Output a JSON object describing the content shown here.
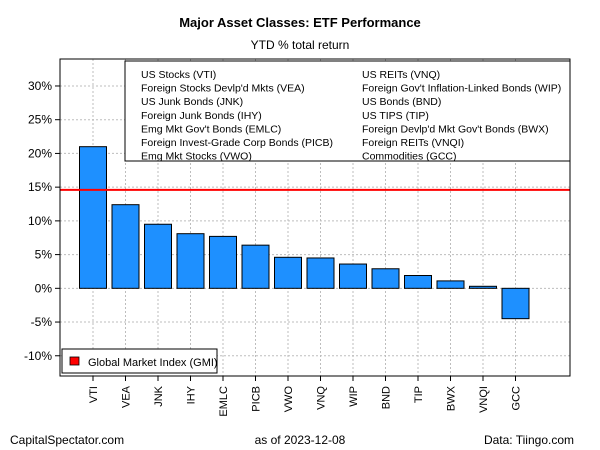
{
  "chart_data": {
    "type": "bar",
    "title": "Major Asset Classes: ETF Performance",
    "subtitle": "YTD % total return",
    "categories": [
      "VTI",
      "VEA",
      "JNK",
      "IHY",
      "EMLC",
      "PICB",
      "VWO",
      "VNQ",
      "WIP",
      "BND",
      "TIP",
      "BWX",
      "VNQI",
      "GCC"
    ],
    "values": [
      21.0,
      12.4,
      9.5,
      8.1,
      7.7,
      6.4,
      4.6,
      4.5,
      3.6,
      2.9,
      1.9,
      1.1,
      0.3,
      -4.5
    ],
    "ylim": [
      -13,
      34
    ],
    "yticks": [
      -10,
      -5,
      0,
      5,
      10,
      15,
      20,
      25,
      30
    ],
    "ytick_labels": [
      "-10%",
      "-5%",
      "0%",
      "5%",
      "10%",
      "15%",
      "20%",
      "25%",
      "30%"
    ],
    "bar_color": "#1e90ff",
    "reference_line": {
      "value": 14.6,
      "color": "#ff0000",
      "label": "Global Market Index (GMI)"
    },
    "grid": true,
    "legend_entries_col1": [
      "US Stocks (VTI)",
      "Foreign Stocks Devlp'd Mkts (VEA)",
      "US Junk Bonds (JNK)",
      "Foreign Junk Bonds (IHY)",
      "Emg Mkt Gov't Bonds (EMLC)",
      "Foreign Invest-Grade Corp Bonds (PICB)",
      "Emg Mkt Stocks (VWO)"
    ],
    "legend_entries_col2": [
      "US REITs (VNQ)",
      "Foreign Gov't Inflation-Linked Bonds (WIP)",
      "US Bonds (BND)",
      "US TIPS (TIP)",
      "Foreign Devlp'd Mkt Gov't Bonds (BWX)",
      "Foreign REITs (VNQI)",
      "Commodities (GCC)"
    ],
    "legend_placement": "top-right"
  },
  "footer": {
    "left": "CapitalSpectator.com",
    "middle": "as of   2023-12-08",
    "right": "Data: Tiingo.com"
  }
}
